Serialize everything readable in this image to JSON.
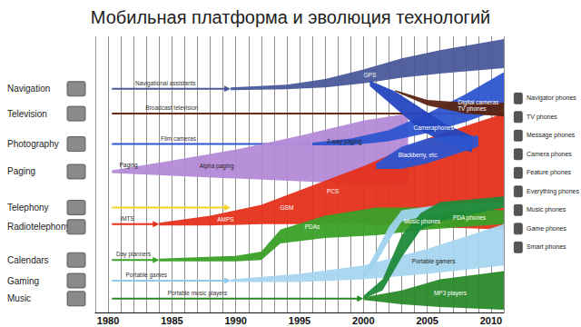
{
  "chart_data": {
    "type": "flow",
    "title": "Мобильная платформа и эволюция технологий",
    "xlim": [
      1979,
      2011
    ],
    "xticks": [
      1980,
      1985,
      1990,
      1995,
      2000,
      2005,
      2010
    ],
    "ylim": [
      0,
      100
    ],
    "tick_labels": "x",
    "grid": true,
    "rows": [
      {
        "name": "Navigation",
        "y": 81
      },
      {
        "name": "Television",
        "y": 72
      },
      {
        "name": "Photography",
        "y": 61
      },
      {
        "name": "Paging",
        "y": 51
      },
      {
        "name": "Telephony",
        "y": 38
      },
      {
        "name": "Radiotelephony",
        "y": 31
      },
      {
        "name": "Calendars",
        "y": 19
      },
      {
        "name": "Gaming",
        "y": 11.5
      },
      {
        "name": "Music",
        "y": 5
      }
    ],
    "arrows": [
      {
        "label": "Navigational assistants",
        "color": "#4a5a9a",
        "x": [
          1980.3,
          1989.6
        ],
        "y": 81,
        "label_x": 1984.5
      },
      {
        "label": "Broadcast television",
        "color": "#6e2a14",
        "x": [
          1980.3,
          2011
        ],
        "y": 72,
        "label_x": 1985
      },
      {
        "label": "Film cameras",
        "color": "#2d55d0",
        "x": [
          1980.3,
          1996
        ],
        "y": 61,
        "label_x": 1985.5
      },
      {
        "color": "#f2d22a",
        "x": [
          1980.3,
          1989.6
        ],
        "y": 38
      },
      {
        "label": "IMTS",
        "color": "#e5301b",
        "x": [
          1980.3,
          1984
        ],
        "y": 32,
        "label_x": 1981.5
      },
      {
        "label": "Day planners",
        "color": "#3aa028",
        "x": [
          1980.3,
          1984
        ],
        "y": 19,
        "label_x": 1982
      },
      {
        "label": "Portable games",
        "color": "#8ecbea",
        "x": [
          1980.3,
          1989.6
        ],
        "y": 11.5,
        "label_x": 1983
      },
      {
        "label": "Portable music players",
        "color": "#2a8a2a",
        "x": [
          1980.3,
          2000
        ],
        "y": 5,
        "label_x": 1987
      }
    ],
    "bands": [
      {
        "color": "#b48ad8",
        "x": [
          1980.3,
          1985,
          1990,
          1995,
          2000,
          2003.5
        ],
        "low": [
          50.5,
          49.5,
          48.5,
          47.5,
          46.5,
          46
        ],
        "high": [
          51.5,
          55,
          59,
          64,
          69.5,
          72
        ],
        "labels": [
          {
            "text": "Paging",
            "x": 1981.6,
            "y": 53.5
          },
          {
            "text": "Alpha paging",
            "x": 1988.5,
            "y": 53
          },
          {
            "text": "2-way paging",
            "x": 1998.5,
            "y": 62
          }
        ]
      },
      {
        "color": "#e5301b",
        "x": [
          1984,
          1988,
          1992,
          1996,
          2000,
          2005,
          2011
        ],
        "low": [
          31.5,
          31.5,
          32,
          32,
          32,
          31,
          30
        ],
        "high": [
          32.5,
          35,
          39,
          46,
          53,
          63,
          72
        ],
        "labels": [
          {
            "text": "AMPS",
            "x": 1989.2,
            "y": 33.8
          },
          {
            "text": "GSM",
            "x": 1994,
            "y": 38
          },
          {
            "text": "PCS",
            "x": 1997.6,
            "y": 44
          }
        ]
      },
      {
        "color": "#4a5a9a",
        "x": [
          1989.6,
          1994,
          1997,
          2000,
          2003,
          2006,
          2011
        ],
        "low": [
          80.5,
          80.8,
          81.5,
          83,
          85,
          86.5,
          88.5
        ],
        "high": [
          81.5,
          82.5,
          84.5,
          88,
          92,
          95,
          99
        ],
        "labels": [
          {
            "text": "GPS",
            "x": 2000.5,
            "y": 86
          }
        ]
      },
      {
        "color": "#2d55d0",
        "x": [
          1996,
          1999,
          2002,
          2005,
          2008,
          2011
        ],
        "low": [
          60.5,
          60.5,
          62,
          65,
          69,
          74
        ],
        "high": [
          61.5,
          63,
          66,
          72,
          79,
          87
        ],
        "labels": [
          {
            "text": "Digital cameras",
            "x": 2009,
            "y": 76
          }
        ]
      },
      {
        "color": "#2446c0",
        "x": [
          2000.5,
          2002.5,
          2004.5,
          2006.5,
          2008.5
        ],
        "low": [
          82,
          74,
          66,
          61,
          58
        ],
        "high": [
          84,
          80,
          74,
          68,
          64
        ],
        "labels": [
          {
            "text": "Cameraphones",
            "x": 2005.5,
            "y": 67
          }
        ]
      },
      {
        "color": "#2d55d0",
        "x": [
          2001,
          2003,
          2005,
          2007,
          2009
        ],
        "low": [
          52,
          52,
          54,
          57,
          60
        ],
        "high": [
          54,
          60,
          63,
          64,
          64
        ],
        "labels": [
          {
            "text": "Blackberry, etc.",
            "x": 2004.3,
            "y": 57
          }
        ]
      },
      {
        "color": "#5a2412",
        "x": [
          2002.5,
          2005,
          2008,
          2011
        ],
        "low": [
          80,
          75,
          72,
          71
        ],
        "high": [
          80.5,
          77,
          76,
          76
        ],
        "labels": [
          {
            "text": "TV phones",
            "x": 2008.5,
            "y": 74
          }
        ]
      },
      {
        "color": "#3aa028",
        "x": [
          1984,
          1990,
          1992,
          1993.5,
          1997,
          2001,
          2005,
          2011
        ],
        "low": [
          18.5,
          18.5,
          19,
          25,
          27,
          28,
          30,
          32
        ],
        "high": [
          19.5,
          20.5,
          22,
          30,
          35,
          38,
          38,
          37
        ],
        "labels": [
          {
            "text": "PDAs",
            "x": 1996,
            "y": 31
          },
          {
            "text": "PDA phones",
            "x": 2008.3,
            "y": 34.5
          }
        ]
      },
      {
        "color": "#a6d6ef",
        "x": [
          1989.6,
          1995,
          2000,
          2005,
          2011
        ],
        "low": [
          11,
          11,
          12,
          14,
          17
        ],
        "high": [
          12,
          14,
          17,
          23,
          32
        ],
        "labels": [
          {
            "text": "Portable gamers",
            "x": 2005.5,
            "y": 18.5
          }
        ]
      },
      {
        "color": "#9fd3ee",
        "x": [
          2000,
          2001,
          2002,
          2003,
          2006,
          2011
        ],
        "low": [
          12,
          18,
          26,
          33,
          36,
          38
        ],
        "high": [
          14,
          22,
          31,
          37,
          39,
          40
        ]
      },
      {
        "color": "#1f8a3a",
        "x": [
          2000,
          2001.5,
          2003,
          2004.5,
          2006,
          2011
        ],
        "low": [
          5,
          8,
          20,
          30,
          33,
          38
        ],
        "high": [
          6,
          12,
          28,
          36,
          40,
          42
        ],
        "labels": [
          {
            "text": "Music phones",
            "x": 2004.6,
            "y": 33
          }
        ]
      },
      {
        "color": "#2a8a2a",
        "x": [
          2000,
          2003,
          2006,
          2011
        ],
        "low": [
          4.5,
          3,
          2,
          1
        ],
        "high": [
          5.5,
          8,
          12,
          15
        ],
        "labels": [
          {
            "text": "MP3 players",
            "x": 2006.8,
            "y": 7
          }
        ]
      }
    ],
    "outputs": [
      "Navigator phones",
      "TV phones",
      "Message phones",
      "Camera phones",
      "Feature phones",
      "Everything phones",
      "Music phones",
      "Game phones",
      "Smart phones"
    ]
  }
}
